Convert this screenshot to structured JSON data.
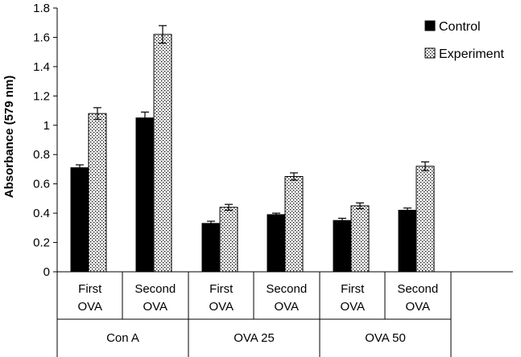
{
  "chart_data": {
    "type": "bar",
    "ylabel": "Absorbance (579 nm)",
    "ylim": [
      0,
      1.8
    ],
    "y_ticks": [
      "0",
      "0.2",
      "0.4",
      "0.6",
      "0.8",
      "1",
      "1.2",
      "1.4",
      "1.6",
      "1.8"
    ],
    "y_tick_values": [
      0,
      0.2,
      0.4,
      0.6,
      0.8,
      1.0,
      1.2,
      1.4,
      1.6,
      1.8
    ],
    "grid": false,
    "legend_position": "top-right",
    "groups": [
      {
        "label": "Con A",
        "categories": [
          {
            "line1": "First",
            "line2": "OVA"
          },
          {
            "line1": "Second",
            "line2": "OVA"
          }
        ]
      },
      {
        "label": "OVA 25",
        "categories": [
          {
            "line1": "First",
            "line2": "OVA"
          },
          {
            "line1": "Second",
            "line2": "OVA"
          }
        ]
      },
      {
        "label": "OVA 50",
        "categories": [
          {
            "line1": "First",
            "line2": "OVA"
          },
          {
            "line1": "Second",
            "line2": "OVA"
          }
        ]
      }
    ],
    "series": [
      {
        "name": "Control",
        "style": "solid",
        "color": "#000000",
        "values": [
          0.71,
          1.05,
          0.33,
          0.39,
          0.35,
          0.42
        ],
        "errors": [
          0.02,
          0.04,
          0.015,
          0.01,
          0.015,
          0.015
        ]
      },
      {
        "name": "Experiment",
        "style": "dotted",
        "color": "#000000",
        "values": [
          1.08,
          1.62,
          0.44,
          0.65,
          0.45,
          0.72
        ],
        "errors": [
          0.04,
          0.06,
          0.02,
          0.025,
          0.02,
          0.03
        ]
      }
    ]
  }
}
